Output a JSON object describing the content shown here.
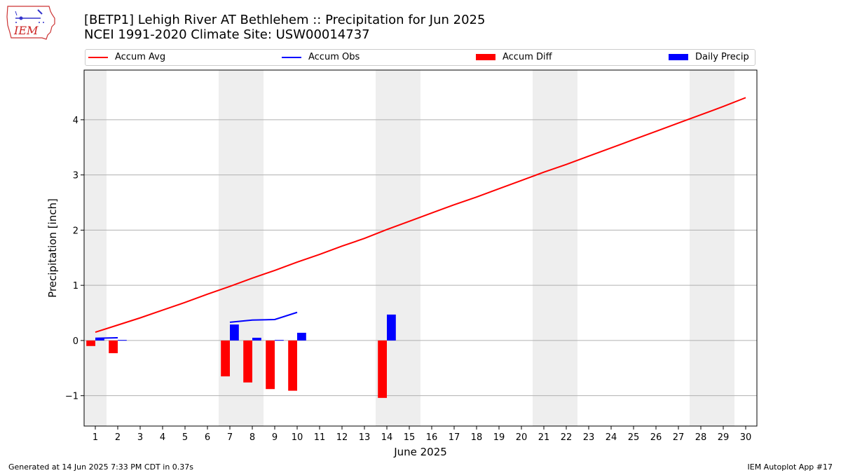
{
  "logo": {
    "text": "IEM"
  },
  "header": {
    "title_line1": "[BETP1] Lehigh River  AT Bethlehem :: Precipitation for Jun 2025",
    "title_line2": "NCEI 1991-2020 Climate Site: USW00014737"
  },
  "legend": {
    "accum_avg": "Accum Avg",
    "accum_obs": "Accum Obs",
    "accum_diff": "Accum Diff",
    "daily_precip": "Daily Precip"
  },
  "footer": {
    "generated": "Generated at 14 Jun 2025 7:33 PM CDT in 0.37s",
    "app": "IEM Autoplot App #17"
  },
  "colors": {
    "avg": "#ff0000",
    "obs": "#0000ff",
    "diff": "#ff0000",
    "daily": "#0000ff",
    "weekend_shade": "#eeeeee",
    "grid": "#b0b0b0"
  },
  "chart_data": {
    "type": "bar",
    "xlabel": "June 2025",
    "ylabel": "Precipitation [inch]",
    "xlim": [
      0.5,
      30.5
    ],
    "ylim": [
      -1.55,
      4.9
    ],
    "yticks": [
      -1,
      0,
      1,
      2,
      3,
      4
    ],
    "x": [
      1,
      2,
      3,
      4,
      5,
      6,
      7,
      8,
      9,
      10,
      11,
      12,
      13,
      14,
      15,
      16,
      17,
      18,
      19,
      20,
      21,
      22,
      23,
      24,
      25,
      26,
      27,
      28,
      29,
      30
    ],
    "weekend_days": [
      1,
      7,
      8,
      14,
      15,
      21,
      22,
      28,
      29
    ],
    "grid": true,
    "legend_position": "top",
    "series": [
      {
        "name": "Accum Avg",
        "kind": "line",
        "x": [
          1,
          2,
          3,
          4,
          5,
          6,
          7,
          8,
          9,
          10,
          11,
          12,
          13,
          14,
          15,
          16,
          17,
          18,
          19,
          20,
          21,
          22,
          23,
          24,
          25,
          26,
          27,
          28,
          29,
          30
        ],
        "values": [
          0.15,
          0.28,
          0.41,
          0.55,
          0.69,
          0.84,
          0.98,
          1.13,
          1.27,
          1.42,
          1.56,
          1.71,
          1.85,
          2.01,
          2.16,
          2.31,
          2.46,
          2.6,
          2.75,
          2.9,
          3.05,
          3.19,
          3.34,
          3.49,
          3.64,
          3.79,
          3.94,
          4.09,
          4.24,
          4.4
        ]
      },
      {
        "name": "Accum Obs",
        "kind": "line",
        "segments": [
          {
            "x": [
              1,
              2
            ],
            "values": [
              0.04,
              0.05
            ]
          },
          {
            "x": [
              7,
              8,
              9,
              10
            ],
            "values": [
              0.33,
              0.37,
              0.38,
              0.51
            ]
          }
        ]
      },
      {
        "name": "Accum Diff",
        "kind": "bar",
        "offset": -0.2,
        "x": [
          1,
          2,
          7,
          8,
          9,
          10,
          14
        ],
        "values": [
          -0.1,
          -0.23,
          -0.65,
          -0.76,
          -0.88,
          -0.91,
          -1.04
        ]
      },
      {
        "name": "Daily Precip",
        "kind": "bar",
        "offset": 0.2,
        "x": [
          1,
          2,
          7,
          8,
          9,
          10,
          14
        ],
        "values": [
          0.04,
          0.01,
          0.29,
          0.05,
          0.01,
          0.14,
          0.47
        ]
      }
    ]
  }
}
